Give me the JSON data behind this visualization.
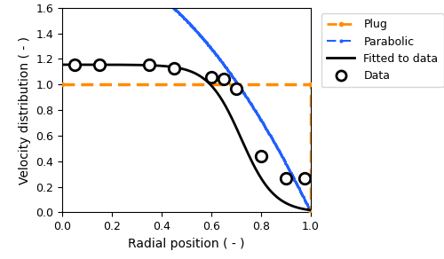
{
  "xlim": [
    0.0,
    1.0
  ],
  "ylim": [
    0.0,
    1.6
  ],
  "xticks": [
    0.0,
    0.2,
    0.4,
    0.6,
    0.8,
    1.0
  ],
  "yticks": [
    0.0,
    0.2,
    0.4,
    0.6,
    0.8,
    1.0,
    1.2,
    1.4,
    1.6
  ],
  "xlabel": "Radial position ( - )",
  "ylabel": "Velocity distribution ( - )",
  "plug_color": "#FF8C00",
  "parabolic_color": "#1E5FFF",
  "fitted_color": "#000000",
  "data_color": "#000000",
  "data_points_x": [
    0.05,
    0.15,
    0.35,
    0.45,
    0.6,
    0.65,
    0.7,
    0.8,
    0.9,
    0.975
  ],
  "data_points_y": [
    1.155,
    1.155,
    1.155,
    1.13,
    1.055,
    1.045,
    0.97,
    0.44,
    0.27,
    0.27
  ],
  "legend_labels": [
    "Plug",
    "Parabolic",
    "Fitted to data",
    "Data"
  ]
}
